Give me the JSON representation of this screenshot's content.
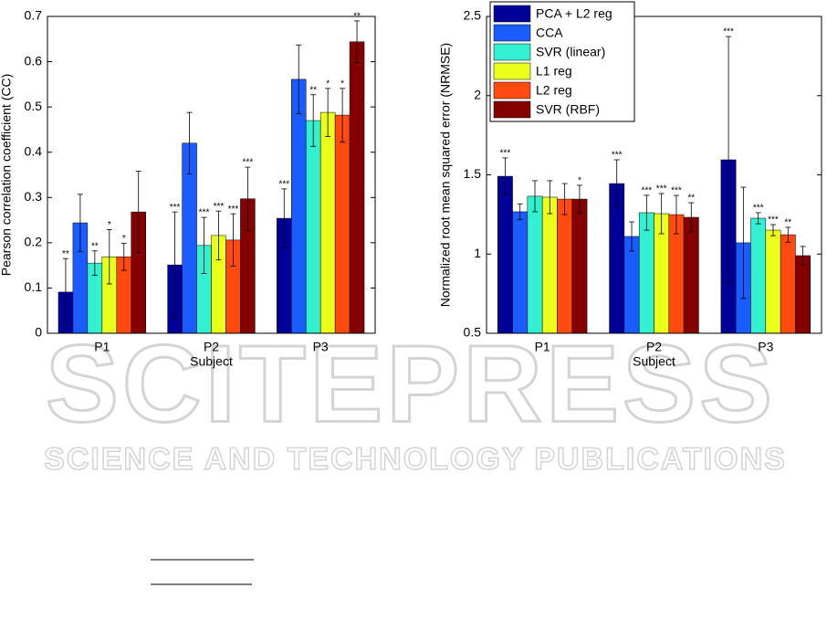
{
  "chart_data": [
    {
      "type": "bar",
      "xlabel": "Subject",
      "ylabel": "Pearson correlation coefficient (CC)",
      "categories": [
        "P1",
        "P2",
        "P3"
      ],
      "ylim": [
        0,
        0.7
      ],
      "yticks": [
        0,
        0.1,
        0.2,
        0.3,
        0.4,
        0.5,
        0.6,
        0.7
      ],
      "series": [
        {
          "name": "PCA + L2 reg",
          "color": "#000099",
          "values": [
            0.091,
            0.151,
            0.254
          ],
          "errors": [
            0.074,
            0.117,
            0.065
          ],
          "annotations": [
            "**",
            "***",
            "***"
          ]
        },
        {
          "name": "CCA",
          "color": "#1a5cff",
          "values": [
            0.244,
            0.42,
            0.561
          ],
          "errors": [
            0.063,
            0.068,
            0.076
          ],
          "annotations": [
            null,
            null,
            null
          ]
        },
        {
          "name": "SVR (linear)",
          "color": "#33f0d0",
          "values": [
            0.155,
            0.194,
            0.47
          ],
          "errors": [
            0.027,
            0.062,
            0.057
          ],
          "annotations": [
            "**",
            "***",
            "**"
          ]
        },
        {
          "name": "L1 reg",
          "color": "#eaff1a",
          "values": [
            0.169,
            0.216,
            0.488
          ],
          "errors": [
            0.06,
            0.054,
            0.053
          ],
          "annotations": [
            "*",
            "***",
            "*"
          ]
        },
        {
          "name": "L2 reg",
          "color": "#ff4a10",
          "values": [
            0.169,
            0.206,
            0.482
          ],
          "errors": [
            0.03,
            0.058,
            0.059
          ],
          "annotations": [
            "*",
            "***",
            "*"
          ]
        },
        {
          "name": "SVR (RBF)",
          "color": "#850000",
          "values": [
            0.268,
            0.297,
            0.644
          ],
          "errors": [
            0.09,
            0.07,
            0.046
          ],
          "annotations": [
            null,
            "***",
            "**"
          ]
        }
      ]
    },
    {
      "type": "bar",
      "xlabel": "Subject",
      "ylabel": "Normalized root mean squared error (NRMSE)",
      "categories": [
        "P1",
        "P2",
        "P3"
      ],
      "ylim": [
        0.5,
        2.5
      ],
      "yticks": [
        0.5,
        1,
        1.5,
        2,
        2.5
      ],
      "legend": "upper left",
      "series": [
        {
          "name": "PCA + L2 reg",
          "color": "#000099",
          "values": [
            1.491,
            1.445,
            1.595
          ],
          "errors": [
            0.116,
            0.15,
            0.778
          ],
          "annotations": [
            "***",
            "***",
            "***"
          ]
        },
        {
          "name": "CCA",
          "color": "#1a5cff",
          "values": [
            1.267,
            1.111,
            1.071
          ],
          "errors": [
            0.05,
            0.092,
            0.351
          ],
          "annotations": [
            null,
            null,
            null
          ]
        },
        {
          "name": "SVR (linear)",
          "color": "#33f0d0",
          "values": [
            1.365,
            1.261,
            1.226
          ],
          "errors": [
            0.098,
            0.11,
            0.035
          ],
          "annotations": [
            null,
            "***",
            "***"
          ]
        },
        {
          "name": "L1 reg",
          "color": "#eaff1a",
          "values": [
            1.359,
            1.255,
            1.151
          ],
          "errors": [
            0.104,
            0.127,
            0.035
          ],
          "annotations": [
            null,
            "***",
            "***"
          ]
        },
        {
          "name": "L2 reg",
          "color": "#ff4a10",
          "values": [
            1.347,
            1.249,
            1.122
          ],
          "errors": [
            0.098,
            0.121,
            0.047
          ],
          "annotations": [
            null,
            "***",
            "**"
          ]
        },
        {
          "name": "SVR (RBF)",
          "color": "#850000",
          "values": [
            1.347,
            1.232,
            0.99
          ],
          "errors": [
            0.087,
            0.092,
            0.058
          ],
          "annotations": [
            "*",
            "**",
            null
          ]
        }
      ]
    }
  ],
  "watermark": {
    "title": "SCITEPRESS",
    "subtitle": "SCIENCE AND TECHNOLOGY PUBLICATIONS"
  }
}
